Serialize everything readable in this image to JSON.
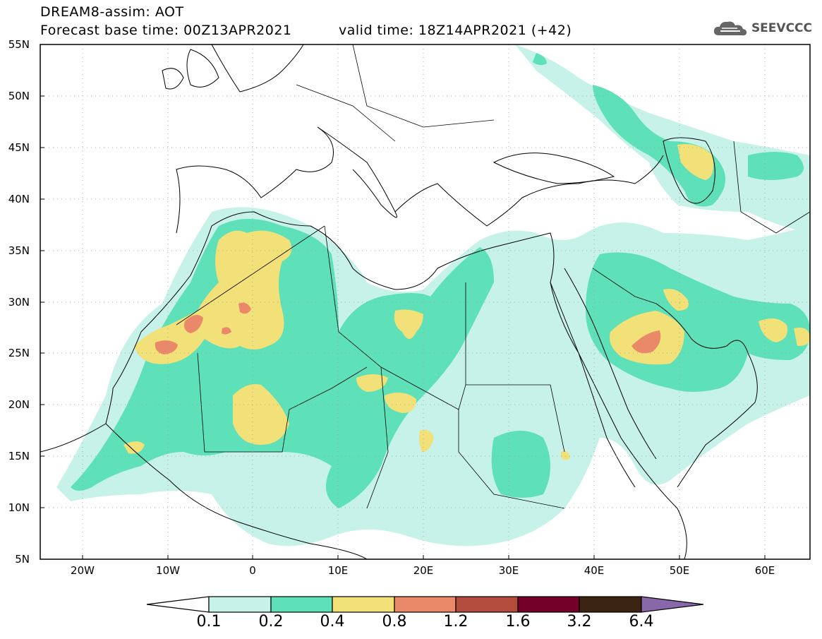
{
  "header": {
    "line1": "DREAM8-assim: AOT",
    "line2": "Forecast base time: 00Z13APR2021",
    "line3": "valid time: 18Z14APR2021 (+42)",
    "logo": "SEEVCCC"
  },
  "map": {
    "lat_labels": [
      "55N",
      "50N",
      "45N",
      "40N",
      "35N",
      "30N",
      "25N",
      "20N",
      "15N",
      "10N",
      "5N"
    ],
    "lon_labels": [
      "20W",
      "10W",
      "0",
      "10E",
      "20E",
      "30E",
      "40E",
      "50E",
      "60E"
    ],
    "colors": {
      "c1": "#c6f2ea",
      "c2": "#5ee0b8",
      "c3": "#f2e078",
      "c4": "#e9896a",
      "c5": "#b24d3e",
      "c6": "#74002a",
      "c7": "#3b2412",
      "c8": "#8a67a8"
    }
  },
  "colorbar": {
    "labels": [
      "0.1",
      "0.2",
      "0.4",
      "0.8",
      "1.2",
      "1.6",
      "3.2",
      "6.4"
    ],
    "colors": [
      "#c6f2ea",
      "#5ee0b8",
      "#f2e078",
      "#e9896a",
      "#b24d3e",
      "#74002a",
      "#3b2412"
    ],
    "over_color": "#8a67a8"
  }
}
